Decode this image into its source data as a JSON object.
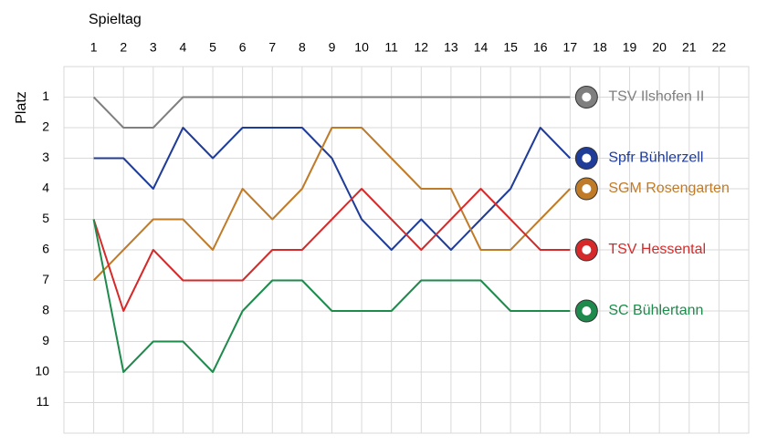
{
  "chart_data": {
    "type": "line",
    "x_label": "Spieltag",
    "y_label": "Platz",
    "x": [
      1,
      2,
      3,
      4,
      5,
      6,
      7,
      8,
      9,
      10,
      11,
      12,
      13,
      14,
      15,
      16,
      17
    ],
    "xlim": [
      0,
      23
    ],
    "xticks": [
      1,
      2,
      3,
      4,
      5,
      6,
      7,
      8,
      9,
      10,
      11,
      12,
      13,
      14,
      15,
      16,
      17,
      18,
      19,
      20,
      21,
      22
    ],
    "ylim": [
      0,
      12
    ],
    "yticks": [
      1,
      2,
      3,
      4,
      5,
      6,
      7,
      8,
      9,
      10,
      11
    ],
    "y_reversed": true,
    "grid": true,
    "series": [
      {
        "name": "TSV Ilshofen II",
        "color": "#7f7f7f",
        "values": [
          1,
          2,
          2,
          1,
          1,
          1,
          1,
          1,
          1,
          1,
          1,
          1,
          1,
          1,
          1,
          1,
          1
        ]
      },
      {
        "name": "Spfr Bühlerzell",
        "color": "#1f3c99",
        "values": [
          3,
          3,
          4,
          2,
          3,
          2,
          2,
          2,
          3,
          5,
          6,
          5,
          6,
          5,
          4,
          2,
          3
        ]
      },
      {
        "name": "SGM Rosengarten",
        "color": "#c07b28",
        "values": [
          7,
          6,
          5,
          5,
          6,
          4,
          5,
          4,
          2,
          2,
          3,
          4,
          4,
          6,
          6,
          5,
          4
        ]
      },
      {
        "name": "TSV Hessental",
        "color": "#d62a2a",
        "values": [
          5,
          8,
          6,
          7,
          7,
          7,
          6,
          6,
          5,
          4,
          5,
          6,
          5,
          4,
          5,
          6,
          6
        ]
      },
      {
        "name": "SC Bühlertann",
        "color": "#1e8a4c",
        "values": [
          5,
          10,
          9,
          9,
          10,
          8,
          7,
          7,
          8,
          8,
          8,
          7,
          7,
          7,
          8,
          8,
          8
        ]
      }
    ]
  }
}
